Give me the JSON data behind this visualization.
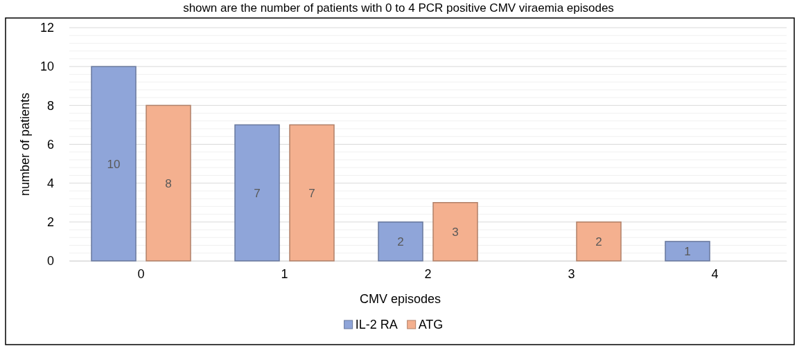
{
  "chart_data": {
    "type": "bar",
    "title": "shown are the number of patients with 0 to 4 PCR positive CMV viraemia episodes",
    "xlabel": "CMV episodes",
    "ylabel": "number of patients",
    "categories": [
      "0",
      "1",
      "2",
      "3",
      "4"
    ],
    "series": [
      {
        "name": "IL-2 RA",
        "color": "#8fa5d9",
        "values": [
          10,
          7,
          2,
          null,
          1
        ]
      },
      {
        "name": "ATG",
        "color": "#f4b08f",
        "values": [
          8,
          7,
          3,
          2,
          null
        ]
      }
    ],
    "ylim": [
      0,
      12
    ],
    "yticks": [
      0,
      {
        "value": 0.4,
        "label": null
      },
      {
        "value": 0.8,
        "label": null
      },
      {
        "value": 1.2,
        "label": null
      },
      {
        "value": 1.6,
        "label": null
      },
      2,
      {
        "value": 2.4,
        "label": null
      },
      {
        "value": 2.8,
        "label": null
      },
      {
        "value": 3.2,
        "label": null
      },
      {
        "value": 3.6,
        "label": null
      },
      4,
      {
        "value": 4.4,
        "label": null
      },
      {
        "value": 4.8,
        "label": null
      },
      {
        "value": 5.2,
        "label": null
      },
      {
        "value": 5.6,
        "label": null
      },
      6,
      {
        "value": 6.4,
        "label": null
      },
      {
        "value": 6.8,
        "label": null
      },
      {
        "value": 7.2,
        "label": null
      },
      {
        "value": 7.6,
        "label": null
      },
      8,
      {
        "value": 8.4,
        "label": null
      },
      {
        "value": 8.8,
        "label": null
      },
      {
        "value": 9.2,
        "label": null
      },
      {
        "value": 9.6,
        "label": null
      },
      10,
      {
        "value": 10.4,
        "label": null
      },
      {
        "value": 10.8,
        "label": null
      },
      {
        "value": 11.2,
        "label": null
      },
      {
        "value": 11.6,
        "label": null
      },
      12
    ],
    "grid": "y",
    "legend": "bottom",
    "data_labels": true
  }
}
